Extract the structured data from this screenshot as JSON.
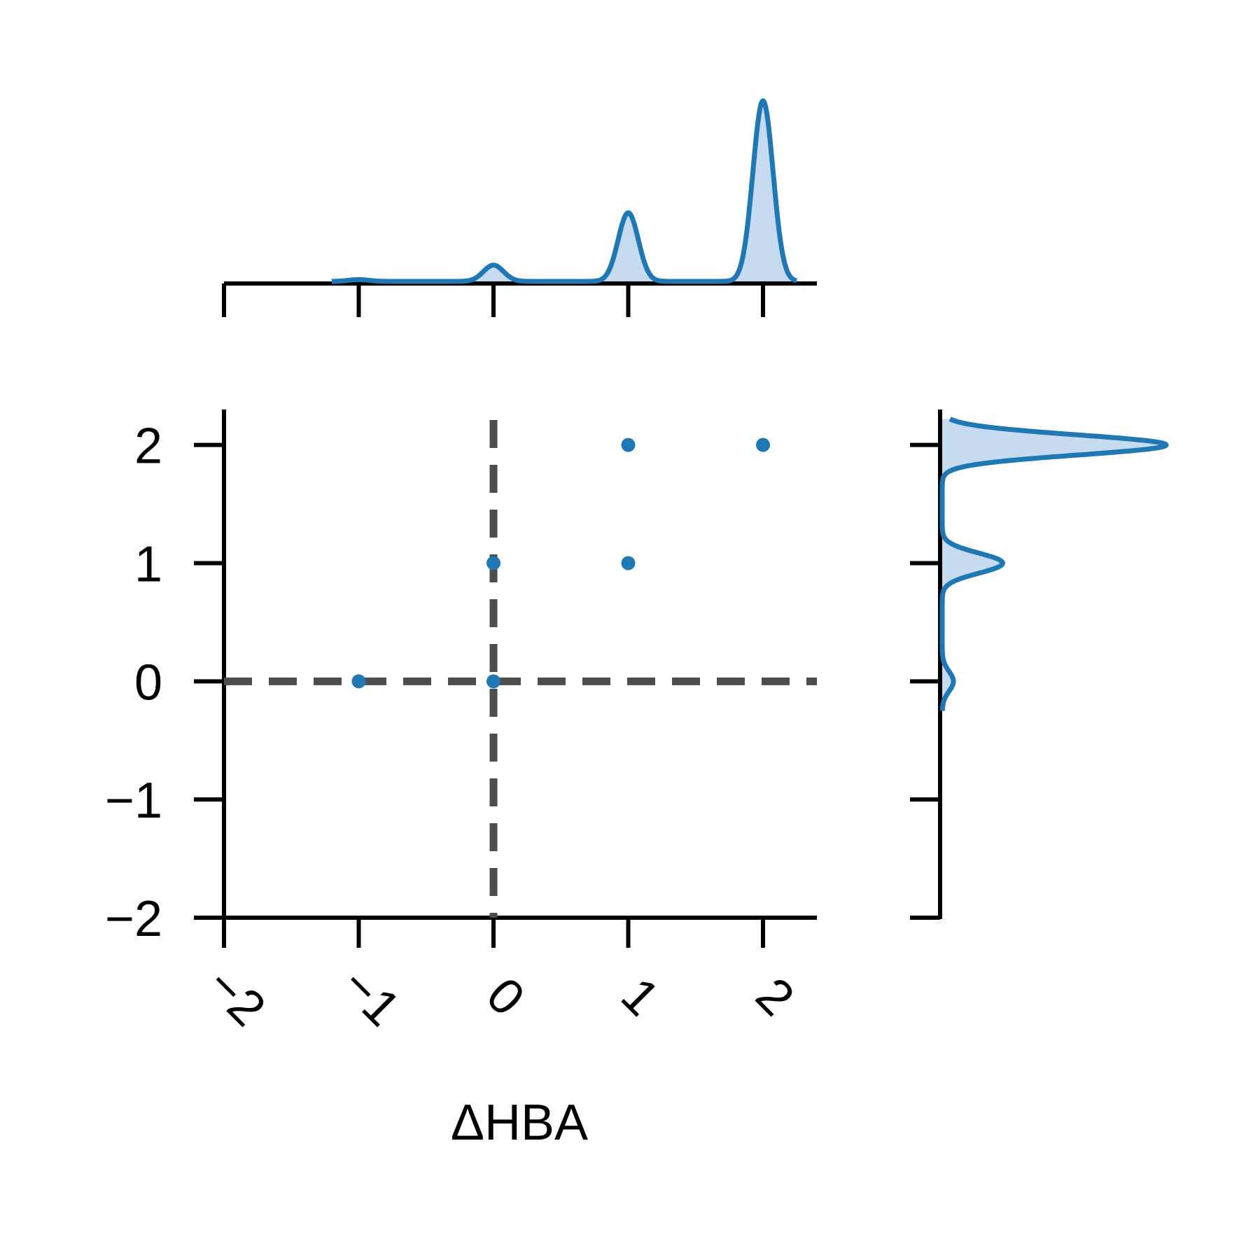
{
  "chart_data": {
    "type": "scatter",
    "title": "",
    "xlabel": "ΔHBA",
    "ylabel": "",
    "xlim": [
      -2,
      2.4
    ],
    "ylim": [
      -2,
      2.4
    ],
    "xticks": [
      -2,
      -1,
      0,
      1,
      2
    ],
    "xtick_labels": [
      "−2",
      "−1",
      "0",
      "1",
      "2"
    ],
    "xtick_rotation": 45,
    "yticks": [
      -2,
      -1,
      0,
      1,
      2
    ],
    "ytick_labels": [
      "−2",
      "−1",
      "0",
      "1",
      "2"
    ],
    "points": [
      {
        "x": -1,
        "y": 0
      },
      {
        "x": 0,
        "y": 0
      },
      {
        "x": 0,
        "y": 1
      },
      {
        "x": 1,
        "y": 1
      },
      {
        "x": 1,
        "y": 2
      },
      {
        "x": 2,
        "y": 2
      }
    ],
    "reference_lines": [
      {
        "orientation": "horizontal",
        "value": 0,
        "style": "dashed"
      },
      {
        "orientation": "vertical",
        "value": 0,
        "style": "dashed"
      }
    ],
    "marginal_x_density": {
      "type": "kde",
      "peaks": [
        {
          "x": -1,
          "relative_height": 0.01
        },
        {
          "x": 0,
          "relative_height": 0.09
        },
        {
          "x": 1,
          "relative_height": 0.38
        },
        {
          "x": 2,
          "relative_height": 1.0
        }
      ]
    },
    "marginal_y_density": {
      "type": "kde",
      "peaks": [
        {
          "y": 0,
          "relative_height": 0.05
        },
        {
          "y": 1,
          "relative_height": 0.27
        },
        {
          "y": 2,
          "relative_height": 1.0
        }
      ]
    },
    "grid": false,
    "legend": "none",
    "colors": {
      "points": "#1f77b4",
      "density_line": "#1f77b4",
      "density_fill": "#c6dbef",
      "reference_line": "#4d4d4d",
      "axis": "#000000"
    }
  }
}
